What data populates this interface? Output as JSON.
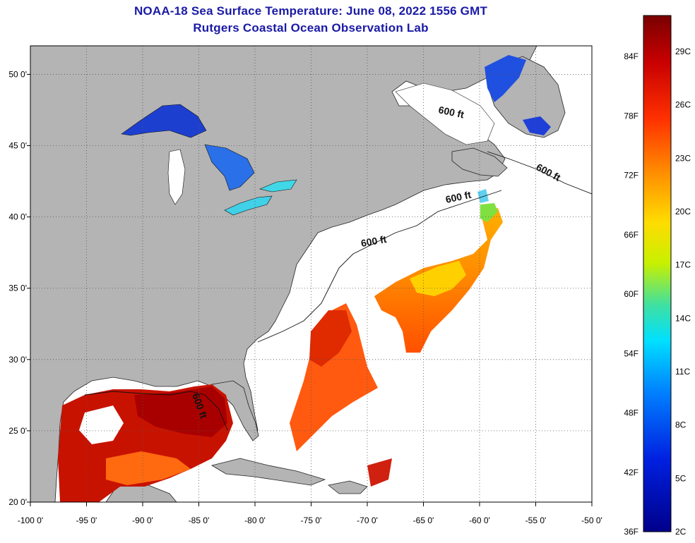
{
  "header": {
    "title": "NOAA-18 Sea Surface Temperature:  June 08, 2022 1556 GMT",
    "subtitle": "Rutgers Coastal Ocean Observation Lab"
  },
  "map": {
    "lon_range": [
      -100,
      -50
    ],
    "lat_range": [
      20,
      52
    ],
    "lon_ticks": [
      "-100 0'",
      "-95 0'",
      "-90 0'",
      "-85 0'",
      "-80 0'",
      "-75 0'",
      "-70 0'",
      "-65 0'",
      "-60 0'",
      "-55 0'",
      "-50 0'"
    ],
    "lat_ticks": [
      "20 0'",
      "25 0'",
      "30 0'",
      "35 0'",
      "40 0'",
      "45 0'",
      "50 0'"
    ],
    "grid": "dotted",
    "land_color": "#b4b4b4",
    "ocean_no_data_color": "#ffffff",
    "contour_labels": [
      "600 ft",
      "600 ft",
      "600 ft",
      "600 ft",
      "600 ft"
    ]
  },
  "colorbar": {
    "fahrenheit_labels": [
      "84F",
      "78F",
      "72F",
      "66F",
      "60F",
      "54F",
      "48F",
      "42F",
      "36F"
    ],
    "celsius_labels": [
      "29C",
      "26C",
      "23C",
      "20C",
      "17C",
      "14C",
      "11C",
      "8C",
      "5C",
      "2C"
    ],
    "colors": [
      "#7a0000",
      "#d40000",
      "#ff4000",
      "#ff9000",
      "#ffe000",
      "#c8f000",
      "#40e0a0",
      "#00e0ff",
      "#0080ff",
      "#0020e0",
      "#00008a"
    ]
  }
}
